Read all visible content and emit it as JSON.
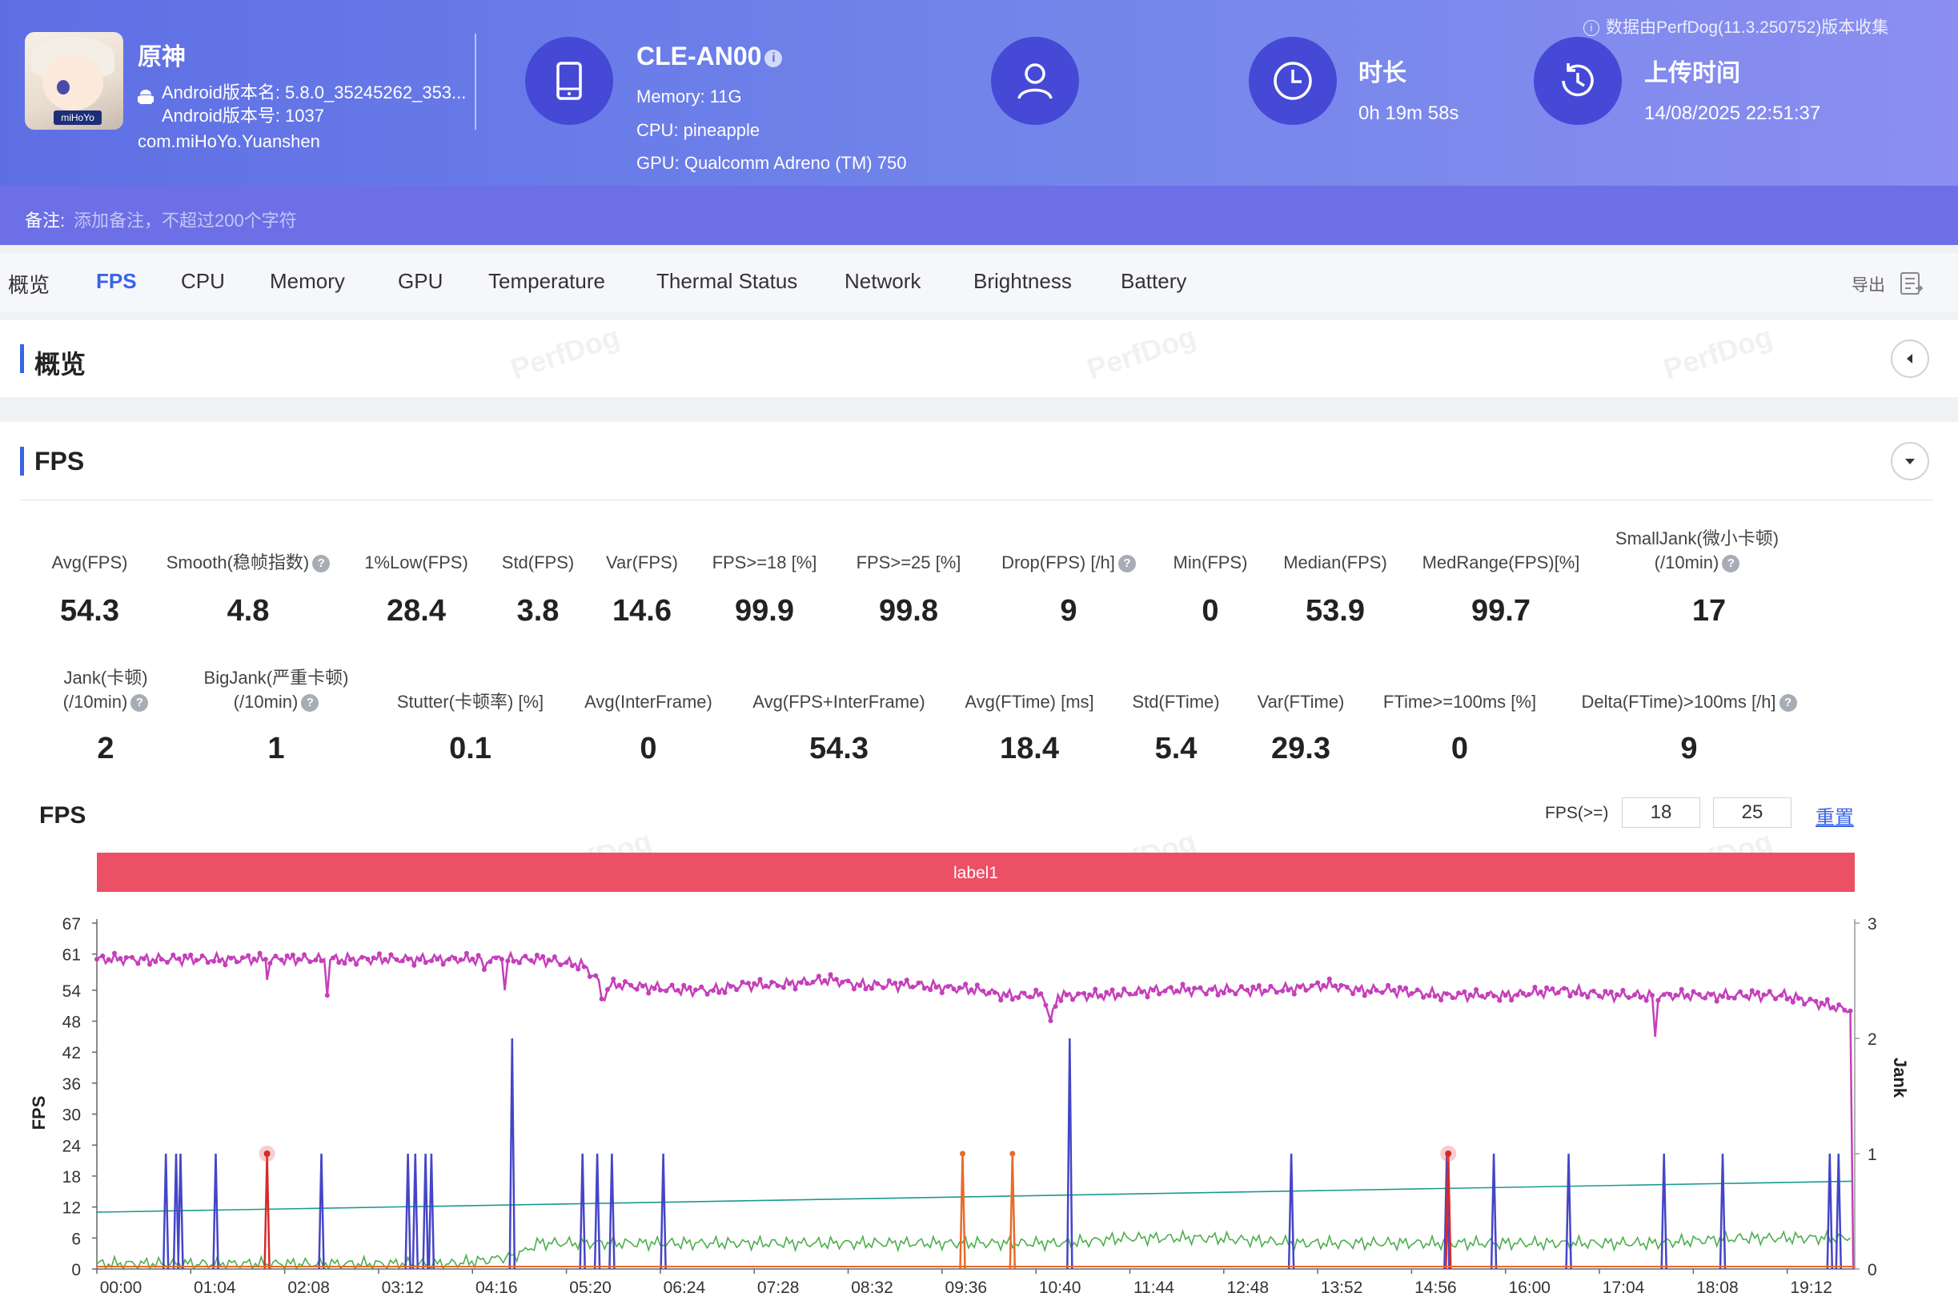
{
  "app": {
    "name": "原神",
    "version_name": "Android版本名: 5.8.0_35245262_353...",
    "version_code": "Android版本号: 1037",
    "package": "com.miHoYo.Yuanshen",
    "icon_text": "miHoYo"
  },
  "device": {
    "name": "CLE-AN00",
    "memory": "Memory: 11G",
    "cpu": "CPU: pineapple",
    "gpu": "GPU: Qualcomm Adreno (TM) 750"
  },
  "duration": {
    "title": "时长",
    "value": "0h 19m 58s"
  },
  "upload": {
    "title": "上传时间",
    "value": "14/08/2025 22:51:37"
  },
  "source_note": "数据由PerfDog(11.3.250752)版本收集",
  "note": {
    "label": "备注:",
    "placeholder": "添加备注，不超过200个字符"
  },
  "tabs": [
    "概览",
    "FPS",
    "CPU",
    "Memory",
    "GPU",
    "Temperature",
    "Thermal Status",
    "Network",
    "Brightness",
    "Battery"
  ],
  "active_tab": "FPS",
  "export_label": "导出",
  "sections": {
    "overview": "概览",
    "fps": "FPS"
  },
  "watermark": "PerfDog",
  "metrics_row1": [
    {
      "label": "Avg(FPS)",
      "value": "54.3"
    },
    {
      "label": "Smooth(稳帧指数)",
      "value": "4.8",
      "help": true
    },
    {
      "label": "1%Low(FPS)",
      "value": "28.4"
    },
    {
      "label": "Std(FPS)",
      "value": "3.8"
    },
    {
      "label": "Var(FPS)",
      "value": "14.6"
    },
    {
      "label": "FPS>=18 [%]",
      "value": "99.9"
    },
    {
      "label": "FPS>=25 [%]",
      "value": "99.8"
    },
    {
      "label": "Drop(FPS) [/h]",
      "value": "9",
      "help": true
    },
    {
      "label": "Min(FPS)",
      "value": "0"
    },
    {
      "label": "Median(FPS)",
      "value": "53.9"
    },
    {
      "label": "MedRange(FPS)[%]",
      "value": "99.7"
    },
    {
      "label": "SmallJank(微小卡顿)",
      "label2": "(/10min)",
      "value": "17",
      "help": true
    }
  ],
  "metrics_row2": [
    {
      "label": "Jank(卡顿)",
      "label2": "(/10min)",
      "value": "2",
      "help": true
    },
    {
      "label": "BigJank(严重卡顿)",
      "label2": "(/10min)",
      "value": "1",
      "help": true
    },
    {
      "label": "Stutter(卡顿率) [%]",
      "value": "0.1"
    },
    {
      "label": "Avg(InterFrame)",
      "value": "0"
    },
    {
      "label": "Avg(FPS+InterFrame)",
      "value": "54.3"
    },
    {
      "label": "Avg(FTime) [ms]",
      "value": "18.4"
    },
    {
      "label": "Std(FTime)",
      "value": "5.4"
    },
    {
      "label": "Var(FTime)",
      "value": "29.3"
    },
    {
      "label": "FTime>=100ms [%]",
      "value": "0"
    },
    {
      "label": "Delta(FTime)>100ms [/h]",
      "value": "9",
      "help": true
    }
  ],
  "chart_controls": {
    "title": "FPS",
    "threshold_label": "FPS(>=)",
    "threshold1": "18",
    "threshold2": "25",
    "reset_label": "重置"
  },
  "chart_data": {
    "type": "line",
    "label_band": "label1",
    "ylabel": "FPS",
    "y2label": "Jank",
    "y_ticks": [
      0,
      6,
      12,
      18,
      24,
      30,
      36,
      42,
      48,
      54,
      61,
      67
    ],
    "y2_ticks": [
      0,
      1,
      2,
      3
    ],
    "ylim": [
      0,
      67
    ],
    "y2lim": [
      0,
      3
    ],
    "xlim_seconds": [
      0,
      1198
    ],
    "x_ticks": [
      "00:00",
      "01:04",
      "02:08",
      "03:12",
      "04:16",
      "05:20",
      "06:24",
      "07:28",
      "08:32",
      "09:36",
      "10:40",
      "11:44",
      "12:48",
      "13:52",
      "14:56",
      "16:00",
      "17:04",
      "18:08",
      "19:12"
    ],
    "series": [
      {
        "name": "FPS",
        "color": "#c53fba",
        "points": [
          [
            0,
            60
          ],
          [
            60,
            60
          ],
          [
            115,
            60
          ],
          [
            116,
            56
          ],
          [
            118,
            60
          ],
          [
            155,
            60
          ],
          [
            157,
            53
          ],
          [
            159,
            60
          ],
          [
            230,
            60
          ],
          [
            262,
            60
          ],
          [
            264,
            58
          ],
          [
            266,
            60
          ],
          [
            276,
            60
          ],
          [
            278,
            54
          ],
          [
            280,
            60
          ],
          [
            300,
            60
          ],
          [
            330,
            59
          ],
          [
            342,
            56
          ],
          [
            344,
            52
          ],
          [
            350,
            55
          ],
          [
            360,
            55
          ],
          [
            400,
            54
          ],
          [
            420,
            54
          ],
          [
            440,
            55
          ],
          [
            460,
            55
          ],
          [
            500,
            56
          ],
          [
            520,
            55
          ],
          [
            560,
            55
          ],
          [
            600,
            54
          ],
          [
            620,
            53
          ],
          [
            640,
            53
          ],
          [
            645,
            53
          ],
          [
            650,
            48
          ],
          [
            655,
            53
          ],
          [
            665,
            53
          ],
          [
            690,
            53
          ],
          [
            720,
            54
          ],
          [
            760,
            54
          ],
          [
            800,
            54
          ],
          [
            840,
            55
          ],
          [
            860,
            54
          ],
          [
            880,
            54
          ],
          [
            920,
            53
          ],
          [
            960,
            53
          ],
          [
            1000,
            54
          ],
          [
            1030,
            53
          ],
          [
            1060,
            53
          ],
          [
            1062,
            45
          ],
          [
            1064,
            53
          ],
          [
            1100,
            53
          ],
          [
            1150,
            53
          ],
          [
            1195,
            50
          ],
          [
            1197,
            0
          ]
        ]
      },
      {
        "name": "series-green",
        "color": "#4cae4c",
        "points": [
          [
            0,
            1
          ],
          [
            120,
            1
          ],
          [
            240,
            1
          ],
          [
            275,
            2
          ],
          [
            290,
            3
          ],
          [
            300,
            5
          ],
          [
            340,
            5
          ],
          [
            400,
            5
          ],
          [
            460,
            5
          ],
          [
            520,
            5
          ],
          [
            580,
            5
          ],
          [
            620,
            5
          ],
          [
            660,
            5
          ],
          [
            700,
            6
          ],
          [
            760,
            6
          ],
          [
            820,
            5
          ],
          [
            880,
            5
          ],
          [
            940,
            5
          ],
          [
            1000,
            5
          ],
          [
            1060,
            5
          ],
          [
            1120,
            6
          ],
          [
            1195,
            6
          ]
        ]
      },
      {
        "name": "series-teal",
        "color": "#1a9a8f",
        "points": [
          [
            0,
            11
          ],
          [
            1197,
            17
          ]
        ]
      },
      {
        "name": "series-blue",
        "color": "#4545c8",
        "spikes": [
          [
            47,
            1
          ],
          [
            54,
            1
          ],
          [
            57,
            1
          ],
          [
            81,
            1
          ],
          [
            153,
            1
          ],
          [
            212,
            1
          ],
          [
            217,
            1
          ],
          [
            224,
            1
          ],
          [
            228,
            1
          ],
          [
            283,
            2
          ],
          [
            331,
            1
          ],
          [
            341,
            1
          ],
          [
            351,
            1
          ],
          [
            386,
            1
          ],
          [
            663,
            2
          ],
          [
            814,
            1
          ],
          [
            920,
            1
          ],
          [
            952,
            1
          ],
          [
            1003,
            1
          ],
          [
            1068,
            1
          ],
          [
            1108,
            1
          ],
          [
            1181,
            1
          ],
          [
            1187,
            1
          ]
        ]
      },
      {
        "name": "series-orange",
        "color": "#e86a2a",
        "spikes": [
          [
            590,
            1
          ],
          [
            624,
            1
          ],
          [
            921,
            1
          ]
        ]
      },
      {
        "name": "series-red",
        "color": "#d62a2a",
        "spikes": [
          [
            116,
            1
          ],
          [
            921,
            1
          ]
        ]
      }
    ]
  }
}
